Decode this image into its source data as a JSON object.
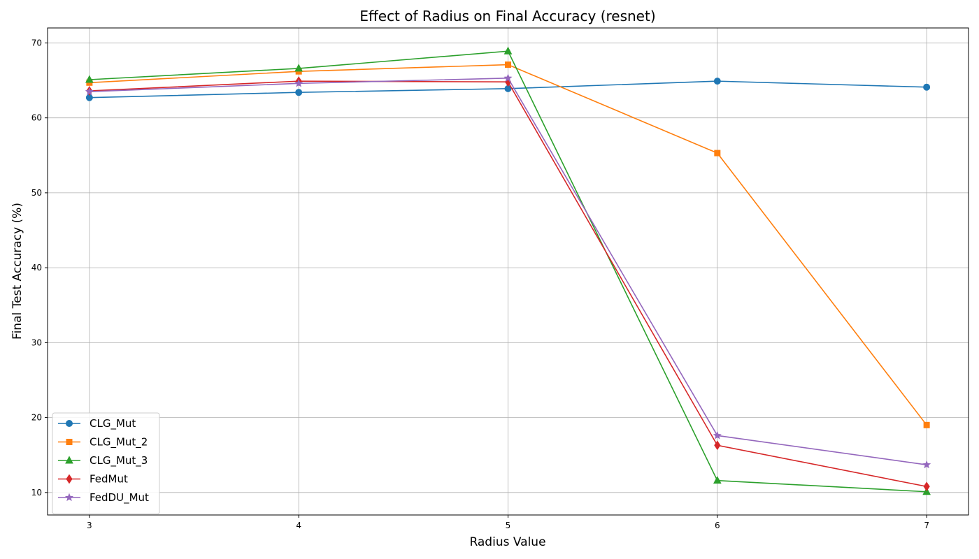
{
  "chart_data": {
    "type": "line",
    "title": "Effect of Radius on Final Accuracy (resnet)",
    "xlabel": "Radius Value",
    "ylabel": "Final Test Accuracy (%)",
    "x": [
      3,
      4,
      5,
      6,
      7
    ],
    "xlim": [
      2.8,
      7.2
    ],
    "ylim": [
      7,
      72
    ],
    "xticks": [
      3,
      4,
      5,
      6,
      7
    ],
    "yticks": [
      10,
      20,
      30,
      40,
      50,
      60,
      70
    ],
    "grid": true,
    "legend_position": "lower-left",
    "series": [
      {
        "name": "CLG_Mut",
        "color": "#1f77b4",
        "marker": "circle",
        "values": [
          62.7,
          63.4,
          63.9,
          64.9,
          64.1
        ]
      },
      {
        "name": "CLG_Mut_2",
        "color": "#ff7f0e",
        "marker": "square",
        "values": [
          64.7,
          66.2,
          67.1,
          55.3,
          19.0
        ]
      },
      {
        "name": "CLG_Mut_3",
        "color": "#2ca02c",
        "marker": "triangle",
        "values": [
          65.1,
          66.6,
          68.9,
          11.6,
          10.1
        ]
      },
      {
        "name": "FedMut",
        "color": "#d62728",
        "marker": "diamond",
        "values": [
          63.6,
          64.9,
          64.8,
          16.3,
          10.8
        ]
      },
      {
        "name": "FedDU_Mut",
        "color": "#9467bd",
        "marker": "star",
        "values": [
          63.5,
          64.6,
          65.3,
          17.6,
          13.7
        ]
      }
    ]
  }
}
